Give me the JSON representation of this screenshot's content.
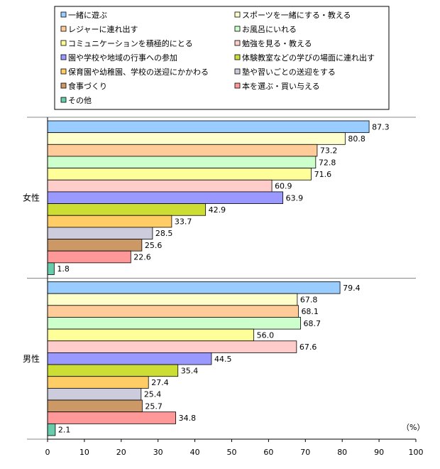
{
  "chart_data": {
    "type": "bar",
    "orientation": "horizontal",
    "unit_label": "（%）",
    "xlim": [
      0,
      100
    ],
    "x_ticks": [
      0,
      10,
      20,
      30,
      40,
      50,
      60,
      70,
      80,
      90,
      100
    ],
    "legend_placement": "top",
    "categories": [
      "女性",
      "男性"
    ],
    "series": [
      {
        "name": "一緒に遊ぶ",
        "color": "#99ccff",
        "values": [
          87.3,
          79.4
        ]
      },
      {
        "name": "スポーツを一緒にする・教える",
        "color": "#ffffcc",
        "values": [
          80.8,
          67.8
        ]
      },
      {
        "name": "レジャーに連れ出す",
        "color": "#ffcc99",
        "values": [
          73.2,
          68.1
        ]
      },
      {
        "name": "お風呂にいれる",
        "color": "#ccffcc",
        "values": [
          72.8,
          68.7
        ]
      },
      {
        "name": "コミュニケーションを積極的にとる",
        "color": "#ffff99",
        "values": [
          71.6,
          56.0
        ]
      },
      {
        "name": "勉強を見る・教える",
        "color": "#ffcccc",
        "values": [
          60.9,
          67.6
        ]
      },
      {
        "name": "園や学校や地域の行事への参加",
        "color": "#9999ff",
        "values": [
          63.9,
          44.5
        ]
      },
      {
        "name": "体験教室などの学びの場面に連れ出す",
        "color": "#ccdd33",
        "values": [
          42.9,
          35.4
        ]
      },
      {
        "name": "保育園や幼稚園、学校の送迎にかかわる",
        "color": "#ffcc66",
        "values": [
          33.7,
          27.4
        ]
      },
      {
        "name": "塾や習いごとの送迎をする",
        "color": "#ccccdd",
        "values": [
          28.5,
          25.4
        ]
      },
      {
        "name": "食事づくり",
        "color": "#cc9966",
        "values": [
          25.6,
          25.7
        ]
      },
      {
        "name": "本を選ぶ・買い与える",
        "color": "#ff9999",
        "values": [
          22.6,
          34.8
        ]
      },
      {
        "name": "その他",
        "color": "#66ccaa",
        "values": [
          1.8,
          2.1
        ]
      }
    ]
  }
}
